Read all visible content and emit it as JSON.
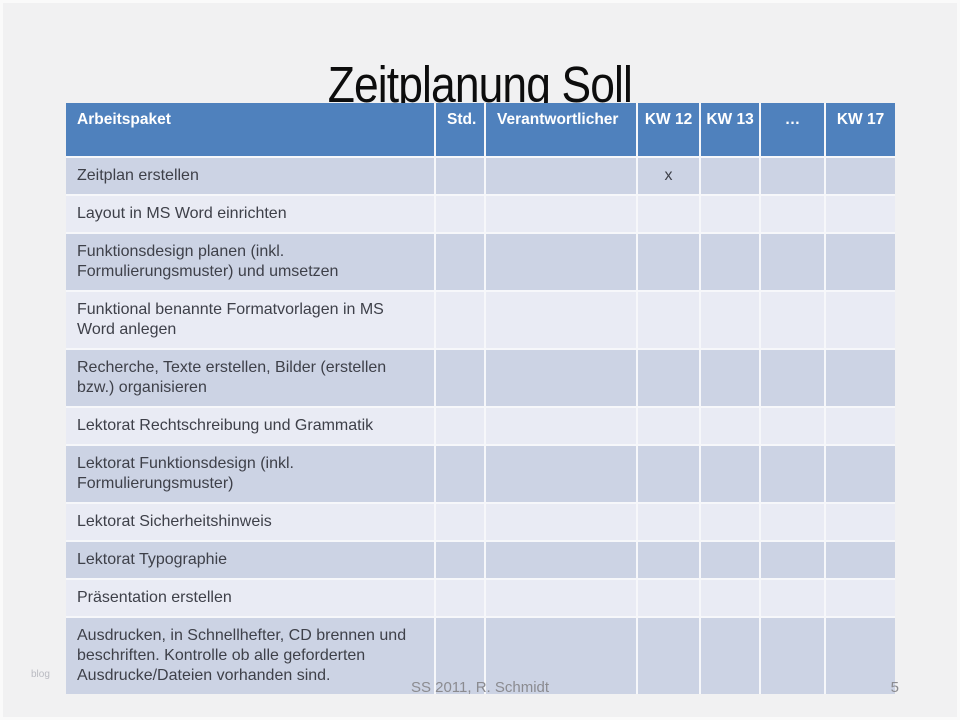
{
  "slide": {
    "title": "Zeitplanung Soll",
    "footer": {
      "center": "SS 2011, R. Schmidt",
      "page_number": "5",
      "watermark": "blog"
    }
  },
  "table": {
    "columns": [
      {
        "key": "arbeitspaket",
        "label": "Arbeitspaket"
      },
      {
        "key": "std",
        "label": "Std."
      },
      {
        "key": "verantwortlicher",
        "label": "Verantwortlicher"
      },
      {
        "key": "kw12",
        "label": "KW 12"
      },
      {
        "key": "kw13",
        "label": "KW 13"
      },
      {
        "key": "ellipsis",
        "label": "…"
      },
      {
        "key": "kw17",
        "label": "KW 17"
      }
    ],
    "rows": [
      {
        "cells": [
          "Zeitplan erstellen",
          "",
          "",
          "x",
          "",
          "",
          ""
        ]
      },
      {
        "cells": [
          "Layout in MS Word einrichten",
          "",
          "",
          "",
          "",
          "",
          ""
        ]
      },
      {
        "cells": [
          "Funktionsdesign planen (inkl. Formulierungsmuster) und umsetzen",
          "",
          "",
          "",
          "",
          "",
          ""
        ]
      },
      {
        "cells": [
          "Funktional benannte Formatvorlagen in MS Word anlegen",
          "",
          "",
          "",
          "",
          "",
          ""
        ]
      },
      {
        "cells": [
          "Recherche, Texte erstellen, Bilder (erstellen bzw.) organisieren",
          "",
          "",
          "",
          "",
          "",
          ""
        ]
      },
      {
        "cells": [
          "Lektorat Rechtschreibung und Grammatik",
          "",
          "",
          "",
          "",
          "",
          ""
        ]
      },
      {
        "cells": [
          "Lektorat Funktionsdesign (inkl. Formulierungsmuster)",
          "",
          "",
          "",
          "",
          "",
          ""
        ]
      },
      {
        "cells": [
          "Lektorat Sicherheitshinweis",
          "",
          "",
          "",
          "",
          "",
          ""
        ]
      },
      {
        "cells": [
          "Lektorat Typographie",
          "",
          "",
          "",
          "",
          "",
          ""
        ]
      },
      {
        "cells": [
          "Präsentation erstellen",
          "",
          "",
          "",
          "",
          "",
          ""
        ]
      },
      {
        "cells": [
          "Ausdrucken, in Schnellhefter, CD brennen und beschriften. Kontrolle ob alle geforderten Ausdrucke/Dateien vorhanden sind.",
          "",
          "",
          "",
          "",
          "",
          ""
        ]
      }
    ]
  },
  "colors": {
    "slide_bg": "#f1f1f2",
    "header_bg": "#4f81bd",
    "header_text": "#ffffff",
    "band_dark": "#ccd3e4",
    "band_light": "#e9ebf4",
    "body_text": "#3e4049",
    "title_text": "#0d0d0d",
    "footer_text": "#8b8b90"
  }
}
